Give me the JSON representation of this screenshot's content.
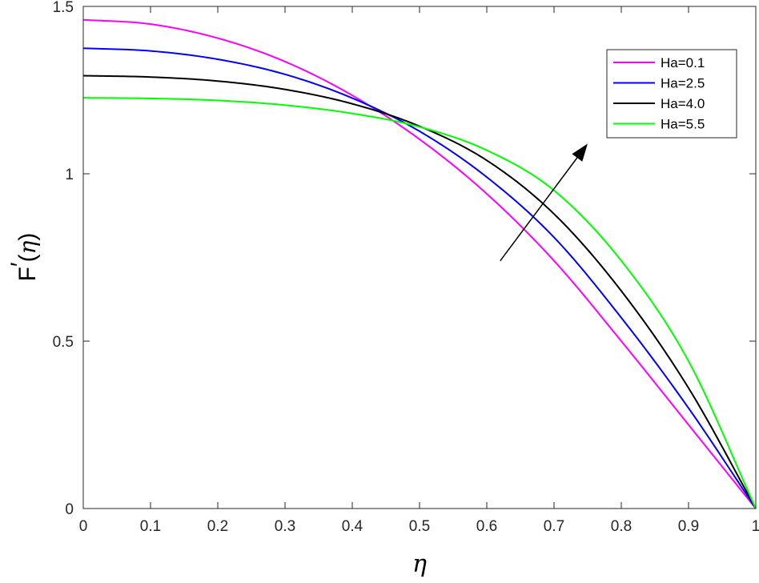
{
  "chart_data": {
    "type": "line",
    "xlabel": "η",
    "ylabel": {
      "prefix": "F",
      "prime": "′",
      "open": "(",
      "var": "η",
      "close": ")"
    },
    "xlim": [
      0,
      1
    ],
    "ylim": [
      0,
      1.5
    ],
    "x_ticks": [
      0,
      0.1,
      0.2,
      0.3,
      0.4,
      0.5,
      0.6,
      0.7,
      0.8,
      0.9,
      1
    ],
    "x_tick_labels": [
      "0",
      "0.1",
      "0.2",
      "0.3",
      "0.4",
      "0.5",
      "0.6",
      "0.7",
      "0.8",
      "0.9",
      "1"
    ],
    "y_ticks": [
      0,
      0.5,
      1,
      1.5
    ],
    "y_tick_labels": [
      "0",
      "0.5",
      "1",
      "1.5"
    ],
    "grid": false,
    "legend_position": "top-right",
    "x": [
      0,
      0.1,
      0.2,
      0.3,
      0.4,
      0.5,
      0.6,
      0.7,
      0.8,
      0.9,
      1.0
    ],
    "series": [
      {
        "name": "Ha=0.1",
        "color": "#ff00ff",
        "values": [
          1.46,
          1.447,
          1.405,
          1.335,
          1.234,
          1.103,
          0.94,
          0.74,
          0.5,
          0.25,
          0
        ]
      },
      {
        "name": "Ha=2.5",
        "color": "#0000ff",
        "values": [
          1.375,
          1.367,
          1.342,
          1.297,
          1.226,
          1.127,
          0.99,
          0.81,
          0.57,
          0.3,
          0
        ]
      },
      {
        "name": "Ha=4.0",
        "color": "#000000",
        "values": [
          1.293,
          1.289,
          1.277,
          1.252,
          1.209,
          1.142,
          1.04,
          0.88,
          0.65,
          0.36,
          0
        ]
      },
      {
        "name": "Ha=5.5",
        "color": "#00ff00",
        "values": [
          1.227,
          1.225,
          1.219,
          1.205,
          1.18,
          1.14,
          1.07,
          0.95,
          0.74,
          0.44,
          0
        ]
      }
    ],
    "annotation": {
      "type": "arrow",
      "from": [
        0.62,
        0.74
      ],
      "to": [
        0.75,
        1.09
      ],
      "color": "#000000"
    }
  }
}
